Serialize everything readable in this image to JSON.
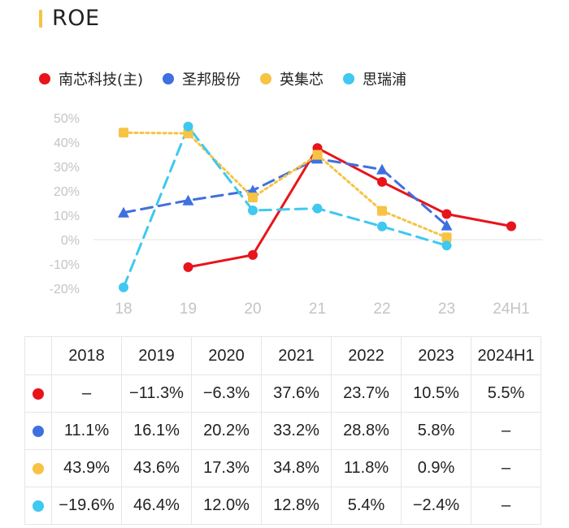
{
  "title": "ROE",
  "legend": [
    {
      "name": "南芯科技(主)",
      "color": "#e8141b"
    },
    {
      "name": "圣邦股份",
      "color": "#3f70e0"
    },
    {
      "name": "英集芯",
      "color": "#f6c343"
    },
    {
      "name": "思瑞浦",
      "color": "#3fc8f0"
    }
  ],
  "chart_data": {
    "type": "line",
    "title": "ROE",
    "categories": [
      "18",
      "19",
      "20",
      "21",
      "22",
      "23",
      "24H1"
    ],
    "y_tick_labels": [
      "50%",
      "40%",
      "30%",
      "20%",
      "10%",
      "0%",
      "-10%",
      "-20%"
    ],
    "ylim": [
      -20,
      50
    ],
    "series": [
      {
        "name": "南芯科技(主)",
        "color": "#e8141b",
        "style": "solid",
        "marker": "circle",
        "values": [
          null,
          -11.3,
          -6.3,
          37.6,
          23.7,
          10.5,
          5.5
        ]
      },
      {
        "name": "圣邦股份",
        "color": "#3f70e0",
        "style": "dashed",
        "marker": "triangle",
        "values": [
          11.1,
          16.1,
          20.2,
          33.2,
          28.8,
          5.8,
          null
        ]
      },
      {
        "name": "英集芯",
        "color": "#f6c343",
        "style": "dotted",
        "marker": "square",
        "values": [
          43.9,
          43.6,
          17.3,
          34.8,
          11.8,
          0.9,
          null
        ]
      },
      {
        "name": "思瑞浦",
        "color": "#3fc8f0",
        "style": "dashed",
        "marker": "circle",
        "values": [
          -19.6,
          46.4,
          12.0,
          12.8,
          5.4,
          -2.4,
          null
        ]
      }
    ]
  },
  "table": {
    "headers": [
      "2018",
      "2019",
      "2020",
      "2021",
      "2022",
      "2023",
      "2024H1"
    ],
    "rows": [
      {
        "color": "#e8141b",
        "cells": [
          "–",
          "−11.3%",
          "−6.3%",
          "37.6%",
          "23.7%",
          "10.5%",
          "5.5%"
        ]
      },
      {
        "color": "#3f70e0",
        "cells": [
          "11.1%",
          "16.1%",
          "20.2%",
          "33.2%",
          "28.8%",
          "5.8%",
          "–"
        ]
      },
      {
        "color": "#f6c343",
        "cells": [
          "43.9%",
          "43.6%",
          "17.3%",
          "34.8%",
          "11.8%",
          "0.9%",
          "–"
        ]
      },
      {
        "color": "#3fc8f0",
        "cells": [
          "−19.6%",
          "46.4%",
          "12.0%",
          "12.8%",
          "5.4%",
          "−2.4%",
          "–"
        ]
      }
    ]
  }
}
